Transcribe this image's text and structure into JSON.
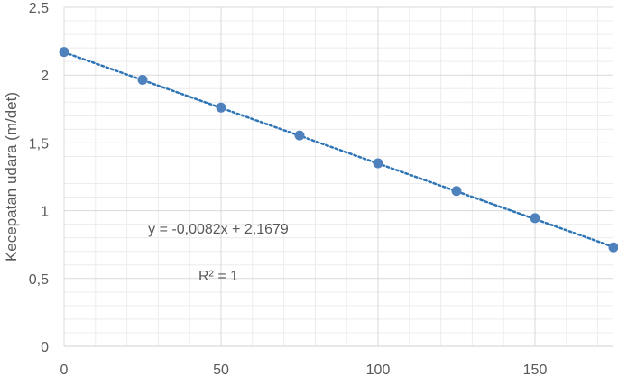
{
  "chart_data": {
    "type": "scatter",
    "title": "",
    "xlabel": "",
    "ylabel": "Kecepatan udara (m/det)",
    "xlim": [
      0,
      175
    ],
    "ylim": [
      0,
      2.5
    ],
    "x_ticks": [
      "0",
      "50",
      "100",
      "150"
    ],
    "y_ticks": [
      "0",
      "0,5",
      "1",
      "1,5",
      "2",
      "2,5"
    ],
    "grid": true,
    "series": [
      {
        "x": [
          0,
          25,
          50,
          75,
          100,
          125,
          150,
          175
        ],
        "y": [
          2.17,
          1.965,
          1.76,
          1.555,
          1.35,
          1.145,
          0.945,
          0.73
        ],
        "color": "#4f81bd"
      }
    ],
    "trendline": {
      "type": "linear",
      "slope": -0.0082,
      "intercept": 2.1679,
      "style": "dotted",
      "color": "#2e75b6",
      "equation_label": "y = -0,0082x + 2,1679",
      "r2_label": "R² = 1"
    }
  }
}
